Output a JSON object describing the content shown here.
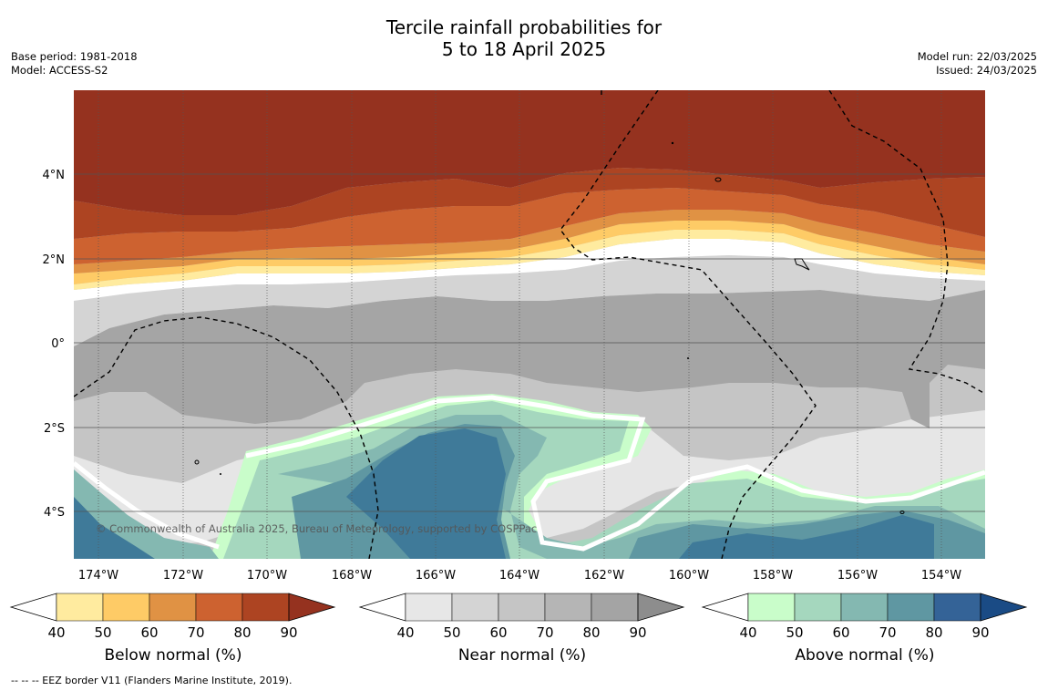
{
  "title_line1": "Tercile rainfall probabilities for",
  "title_line2": "5 to 18 April 2025",
  "meta_left": {
    "base_period": "Base period: 1981-2018",
    "model": "Model: ACCESS-S2"
  },
  "meta_right": {
    "model_run": "Model run: 22/03/2025",
    "issued": "Issued: 24/03/2025"
  },
  "map": {
    "longitude_ticks": [
      "174°W",
      "172°W",
      "170°W",
      "168°W",
      "166°W",
      "164°W",
      "162°W",
      "160°W",
      "158°W",
      "156°W",
      "154°W"
    ],
    "latitude_ticks": [
      "4°N",
      "2°N",
      "0°",
      "2°S",
      "4°S"
    ],
    "copyright": "© Commonwealth of Australia 2025, Bureau of Meteorology, supported by COSPPac"
  },
  "colorbars": [
    {
      "title": "Below normal (%)",
      "ticks": [
        "40",
        "50",
        "60",
        "70",
        "80",
        "90"
      ],
      "colors": [
        "#ffeb9f",
        "#fecb66",
        "#e09244",
        "#cd6230",
        "#ad4422",
        "#95321f"
      ]
    },
    {
      "title": "Near normal (%)",
      "ticks": [
        "40",
        "50",
        "60",
        "70",
        "80",
        "90"
      ],
      "colors": [
        "#e7e7e7",
        "#d4d4d4",
        "#c5c5c5",
        "#b5b5b5",
        "#a4a4a4",
        "#8d8d8d"
      ]
    },
    {
      "title": "Above normal (%)",
      "ticks": [
        "40",
        "50",
        "60",
        "70",
        "80",
        "90"
      ],
      "colors": [
        "#c9fdca",
        "#a5d7be",
        "#84b8b1",
        "#5f97a2",
        "#346397",
        "#1a4b85"
      ]
    }
  ],
  "legend_note": "--  --  -- EEZ border V11 (Flanders Marine Institute, 2019).",
  "colors": {
    "below_high": "#95321f",
    "near_normal": "#a5a5a5",
    "above_normal": "#3f7a99",
    "eez_border": "#000000"
  }
}
